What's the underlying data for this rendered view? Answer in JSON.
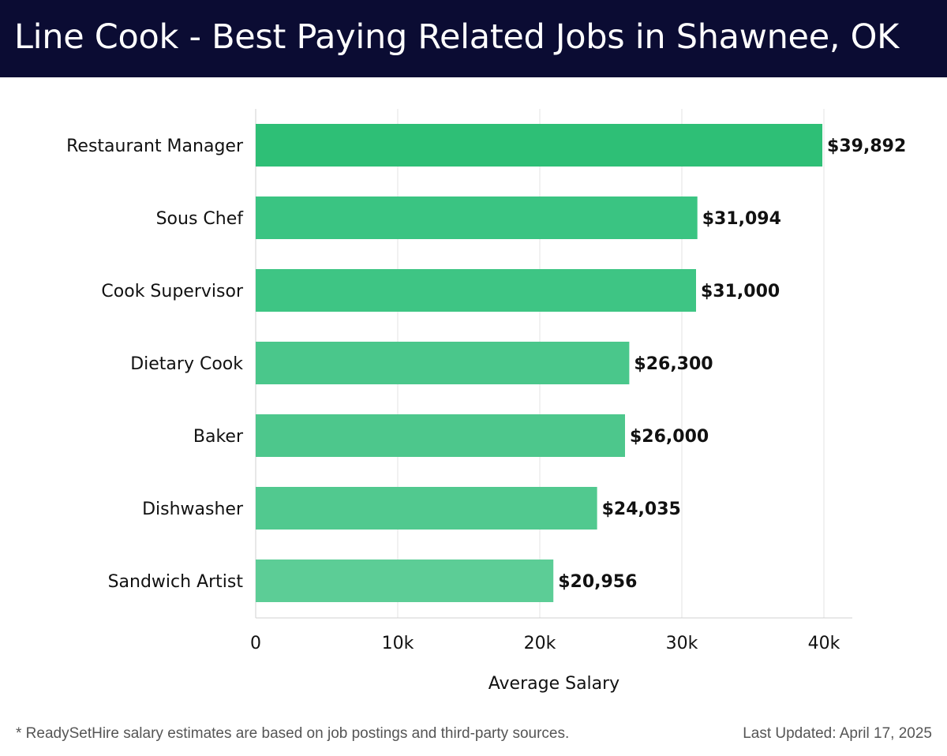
{
  "header": {
    "title": "Line Cook - Best Paying Related Jobs in Shawnee, OK"
  },
  "chart_data": {
    "type": "bar",
    "orientation": "horizontal",
    "title": "Line Cook - Best Paying Related Jobs in Shawnee, OK",
    "xlabel": "Average Salary",
    "ylabel": "",
    "xlim": [
      0,
      40000
    ],
    "x_ticks": [
      0,
      10000,
      20000,
      30000,
      40000
    ],
    "x_tick_labels": [
      "0",
      "10k",
      "20k",
      "30k",
      "40k"
    ],
    "grid": true,
    "categories": [
      "Restaurant Manager",
      "Sous Chef",
      "Cook Supervisor",
      "Dietary Cook",
      "Baker",
      "Dishwasher",
      "Sandwich Artist"
    ],
    "values": [
      39892,
      31094,
      31000,
      26300,
      26000,
      24035,
      20956
    ],
    "value_labels": [
      "$39,892",
      "$31,094",
      "$31,000",
      "$26,300",
      "$26,000",
      "$24,035",
      "$20,956"
    ],
    "bar_colors": [
      "#2ebf76",
      "#3ac482",
      "#3ec584",
      "#4ac78b",
      "#4dc78c",
      "#51c98f",
      "#5ccd96"
    ]
  },
  "footer": {
    "note": "* ReadySetHire salary estimates are based on job postings and third-party sources.",
    "updated": "Last Updated: April 17, 2025"
  },
  "colors": {
    "header_bg": "#0b0c33",
    "header_text": "#ffffff",
    "grid": "#e3e3e3",
    "axis": "#d0d0d0"
  }
}
